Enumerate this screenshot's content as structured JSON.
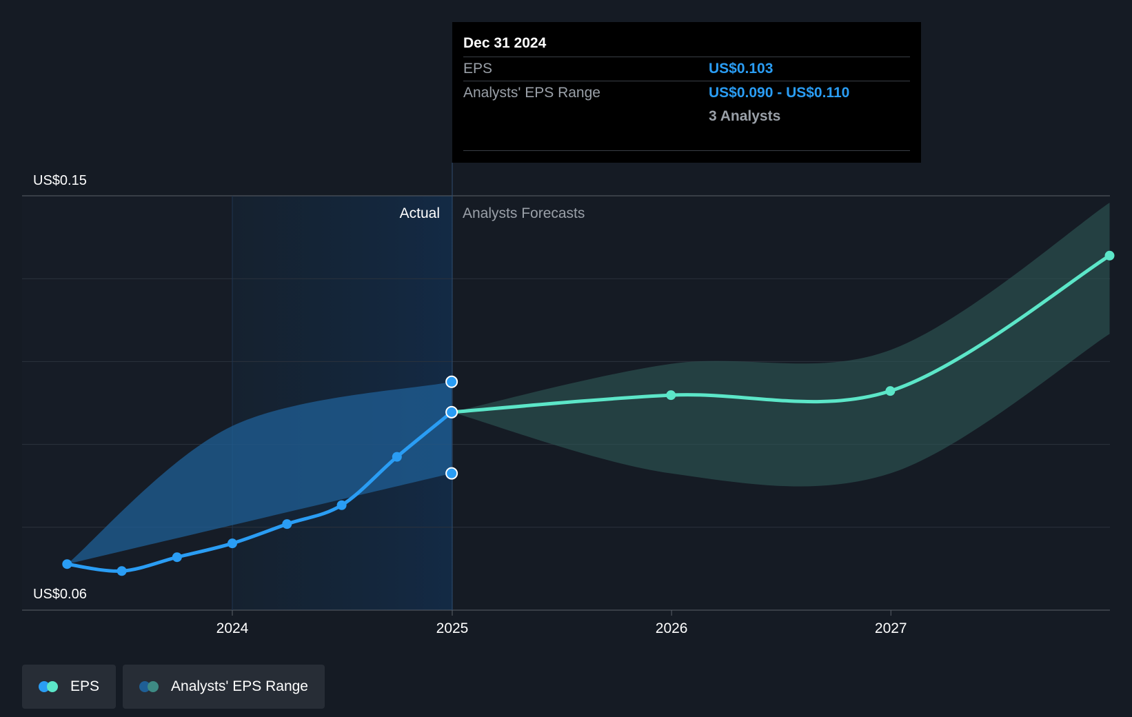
{
  "chart_data": {
    "type": "line",
    "y_axis": {
      "min_label": "US$0.06",
      "max_label": "US$0.15",
      "ylim": [
        0.06,
        0.15
      ]
    },
    "x_ticks": [
      "2024",
      "2025",
      "2026",
      "2027"
    ],
    "section_labels": {
      "actual": "Actual",
      "forecast": "Analysts Forecasts"
    },
    "series": [
      {
        "name": "EPS",
        "kind": "actual",
        "color": "#2a9df4",
        "points": [
          {
            "x": "2023-04-01",
            "y": 0.07
          },
          {
            "x": "2023-07-01",
            "y": 0.0685
          },
          {
            "x": "2023-10-01",
            "y": 0.0715
          },
          {
            "x": "2024-01-01",
            "y": 0.0745
          },
          {
            "x": "2024-04-01",
            "y": 0.0787
          },
          {
            "x": "2024-07-01",
            "y": 0.0828
          },
          {
            "x": "2024-10-01",
            "y": 0.0933
          },
          {
            "x": "2024-12-31",
            "y": 0.103
          }
        ]
      },
      {
        "name": "EPS",
        "kind": "forecast",
        "color": "#5ce6c8",
        "points": [
          {
            "x": "2024-12-31",
            "y": 0.103
          },
          {
            "x": "2025-12-31",
            "y": 0.1067
          },
          {
            "x": "2026-12-31",
            "y": 0.1076
          },
          {
            "x": "2027-12-31",
            "y": 0.137
          }
        ]
      }
    ],
    "ranges": [
      {
        "name": "Analysts' EPS Range",
        "kind": "actual",
        "color": "#1f5f96",
        "upper": [
          {
            "x": "2023-04-01",
            "y": 0.07
          },
          {
            "x": "2024-01-01",
            "y": 0.1
          },
          {
            "x": "2024-12-31",
            "y": 0.1096
          }
        ],
        "lower": [
          {
            "x": "2023-04-01",
            "y": 0.07
          },
          {
            "x": "2024-12-31",
            "y": 0.0897
          }
        ]
      },
      {
        "name": "Analysts' EPS Range",
        "kind": "forecast",
        "color": "#2d5553",
        "upper": [
          {
            "x": "2024-12-31",
            "y": 0.103
          },
          {
            "x": "2025-12-31",
            "y": 0.1135
          },
          {
            "x": "2026-12-31",
            "y": 0.1165
          },
          {
            "x": "2027-12-31",
            "y": 0.1485
          }
        ],
        "lower": [
          {
            "x": "2024-12-31",
            "y": 0.103
          },
          {
            "x": "2025-12-31",
            "y": 0.0897
          },
          {
            "x": "2026-12-31",
            "y": 0.0897
          },
          {
            "x": "2027-12-31",
            "y": 0.12
          }
        ]
      }
    ],
    "highlight_points": [
      {
        "x": "2024-12-31",
        "y": 0.1096
      },
      {
        "x": "2024-12-31",
        "y": 0.103
      },
      {
        "x": "2024-12-31",
        "y": 0.0897
      }
    ],
    "grid": true,
    "legend_position": "bottom-left"
  },
  "tooltip": {
    "date": "Dec 31 2024",
    "eps_label": "EPS",
    "eps_value": "US$0.103",
    "range_label": "Analysts' EPS Range",
    "range_value": "US$0.090 - US$0.110",
    "analysts": "3 Analysts"
  },
  "legend": {
    "eps_label": "EPS",
    "range_label": "Analysts' EPS Range"
  },
  "colors": {
    "background": "#151b24",
    "eps_actual": "#2a9df4",
    "eps_forecast": "#5ce6c8"
  }
}
